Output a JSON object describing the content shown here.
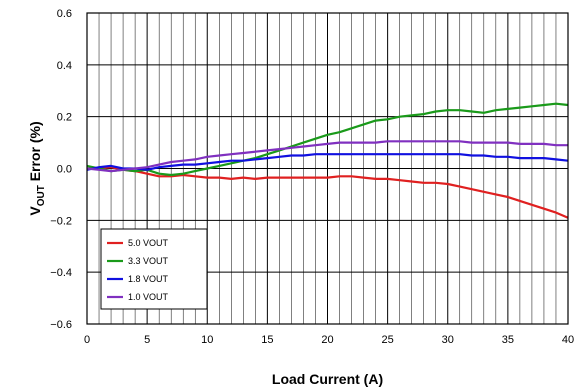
{
  "chart_data": {
    "type": "line",
    "xlabel": "Load Current (A)",
    "ylabel_main": "V",
    "ylabel_sub": "OUT",
    "ylabel_rest": " Error (%)",
    "xlim": [
      0,
      40
    ],
    "ylim": [
      -0.6,
      0.6
    ],
    "xticks": [
      0,
      5,
      10,
      15,
      20,
      25,
      30,
      35,
      40
    ],
    "xtick_labels": [
      "0",
      "5",
      "10",
      "15",
      "20",
      "25",
      "30",
      "35",
      "40"
    ],
    "yticks": [
      -0.6,
      -0.4,
      -0.2,
      0.0,
      0.2,
      0.4,
      0.6
    ],
    "ytick_labels": [
      "−0.6",
      "−0.4",
      "−0.2",
      "0.0",
      "0.2",
      "0.4",
      "0.6"
    ],
    "grid": true,
    "legend_position": "lower-left",
    "x": [
      0,
      1,
      2,
      3,
      4,
      5,
      6,
      7,
      8,
      9,
      10,
      11,
      12,
      13,
      14,
      15,
      16,
      17,
      18,
      19,
      20,
      21,
      22,
      23,
      24,
      25,
      26,
      27,
      28,
      29,
      30,
      31,
      32,
      33,
      34,
      35,
      36,
      37,
      38,
      39,
      40
    ],
    "series": [
      {
        "name": "5.0 VOUT",
        "color": "#e02020",
        "values": [
          0.0,
          0.0,
          0.005,
          -0.005,
          -0.01,
          -0.02,
          -0.03,
          -0.03,
          -0.025,
          -0.03,
          -0.035,
          -0.035,
          -0.04,
          -0.035,
          -0.04,
          -0.035,
          -0.035,
          -0.035,
          -0.035,
          -0.035,
          -0.035,
          -0.03,
          -0.03,
          -0.035,
          -0.04,
          -0.04,
          -0.045,
          -0.05,
          -0.055,
          -0.055,
          -0.06,
          -0.07,
          -0.08,
          -0.09,
          -0.1,
          -0.11,
          -0.125,
          -0.14,
          -0.155,
          -0.17,
          -0.19
        ]
      },
      {
        "name": "3.3 VOUT",
        "color": "#1a9a1a",
        "values": [
          0.01,
          0.0,
          -0.01,
          -0.005,
          -0.01,
          -0.005,
          -0.02,
          -0.025,
          -0.02,
          -0.01,
          0.0,
          0.01,
          0.02,
          0.03,
          0.04,
          0.055,
          0.07,
          0.085,
          0.1,
          0.115,
          0.13,
          0.14,
          0.155,
          0.17,
          0.185,
          0.19,
          0.2,
          0.205,
          0.21,
          0.22,
          0.225,
          0.225,
          0.22,
          0.215,
          0.225,
          0.23,
          0.235,
          0.24,
          0.245,
          0.25,
          0.245
        ]
      },
      {
        "name": "1.8 VOUT",
        "color": "#1010e0",
        "values": [
          -0.005,
          0.005,
          0.01,
          0.0,
          0.0,
          -0.005,
          0.005,
          0.01,
          0.015,
          0.015,
          0.02,
          0.025,
          0.03,
          0.03,
          0.035,
          0.04,
          0.045,
          0.05,
          0.05,
          0.055,
          0.055,
          0.055,
          0.055,
          0.055,
          0.055,
          0.055,
          0.055,
          0.055,
          0.055,
          0.055,
          0.055,
          0.055,
          0.05,
          0.05,
          0.045,
          0.045,
          0.04,
          0.04,
          0.04,
          0.035,
          0.03
        ]
      },
      {
        "name": "1.0 VOUT",
        "color": "#8030c0",
        "values": [
          0.0,
          -0.005,
          -0.01,
          -0.005,
          0.0,
          0.005,
          0.015,
          0.025,
          0.03,
          0.035,
          0.045,
          0.05,
          0.055,
          0.06,
          0.065,
          0.07,
          0.075,
          0.08,
          0.085,
          0.09,
          0.095,
          0.1,
          0.1,
          0.1,
          0.1,
          0.105,
          0.105,
          0.105,
          0.105,
          0.105,
          0.105,
          0.105,
          0.1,
          0.1,
          0.1,
          0.1,
          0.095,
          0.095,
          0.095,
          0.09,
          0.09
        ]
      }
    ]
  }
}
